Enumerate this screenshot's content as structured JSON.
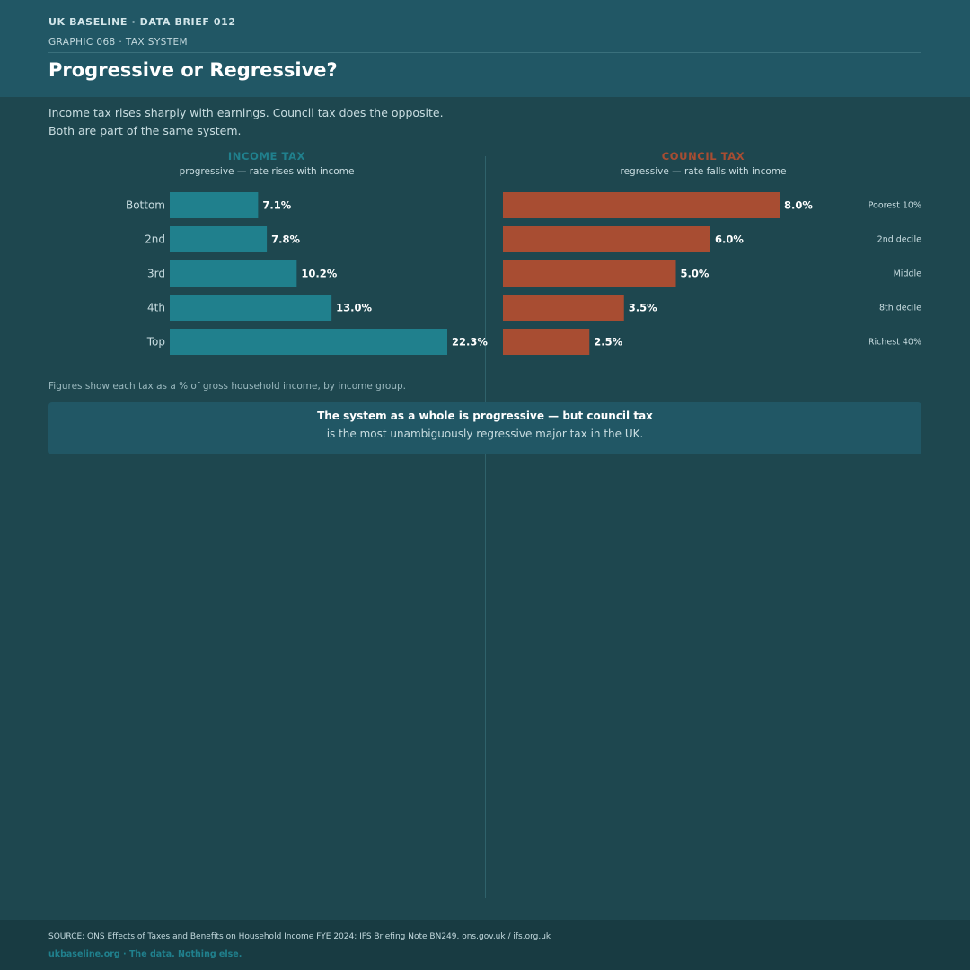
{
  "header": {
    "brand": "UK BASELINE  ·  DATA BRIEF 012",
    "graphic": "GRAPHIC 068  ·  TAX SYSTEM",
    "title": "Progressive or Regressive?"
  },
  "subtitle": {
    "line1": "Income tax rises sharply with earnings. Council tax does the opposite.",
    "line2": "Both are part of the same system."
  },
  "colors": {
    "income": "#20808d",
    "council": "#a84d32",
    "background": "#1e474f",
    "header": "#215765"
  },
  "chart_data": [
    {
      "type": "bar",
      "orientation": "horizontal",
      "title": "INCOME TAX",
      "subtitle": "progressive — rate rises with income",
      "categories": [
        "Bottom",
        "2nd",
        "3rd",
        "4th",
        "Top"
      ],
      "values": [
        7.1,
        7.8,
        10.2,
        13.0,
        22.3
      ],
      "labels": [
        "7.1%",
        "7.8%",
        "10.2%",
        "13.0%",
        "22.3%"
      ],
      "unit": "%",
      "xlim": [
        0,
        24
      ]
    },
    {
      "type": "bar",
      "orientation": "horizontal",
      "title": "COUNCIL TAX",
      "subtitle": "regressive — rate falls with income",
      "categories": [
        "Poorest 10%",
        "2nd decile",
        "Middle",
        "8th decile",
        "Richest 40%"
      ],
      "values": [
        8.0,
        6.0,
        5.0,
        3.5,
        2.5
      ],
      "labels": [
        "8.0%",
        "6.0%",
        "5.0%",
        "3.5%",
        "2.5%"
      ],
      "unit": "%",
      "xlim": [
        0,
        10
      ]
    }
  ],
  "note": "Figures show each tax as a % of gross household income, by income group.",
  "callout": {
    "strong": "The system as a whole is progressive — but council tax",
    "text": "is the most unambiguously regressive major tax in the UK."
  },
  "footer": {
    "source": "SOURCE: ONS Effects of Taxes and Benefits on Household Income FYE 2024; IFS Briefing Note BN249. ons.gov.uk / ifs.org.uk",
    "site": "ukbaseline.org  ·  The data. Nothing else."
  }
}
